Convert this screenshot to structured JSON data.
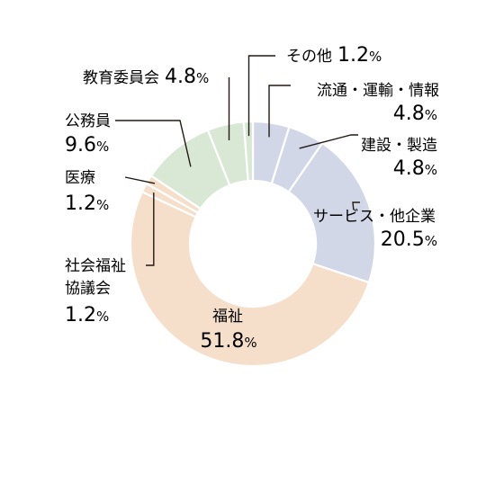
{
  "chart_data": {
    "type": "pie",
    "variant": "donut",
    "categories": [
      "流通・運輸・情報",
      "建設・製造",
      "サービス・他企業",
      "福祉",
      "社会福祉協議会",
      "医療",
      "公務員",
      "教育委員会",
      "その他"
    ],
    "values": [
      4.8,
      4.8,
      20.5,
      51.8,
      1.2,
      1.2,
      9.6,
      4.8,
      1.2
    ],
    "value_labels": [
      "4.8",
      "4.8",
      "20.5",
      "51.8",
      "1.2",
      "1.2",
      "9.6",
      "4.8",
      "1.2"
    ],
    "unit": "%",
    "colors": [
      "#d2d7e7",
      "#d2d7e7",
      "#d2d7e7",
      "#f5dfcb",
      "#f5dfcb",
      "#f5dfcb",
      "#d9e8d5",
      "#d9e8d5",
      "#d9e8d5"
    ],
    "start": "12 o'clock",
    "direction": "clockwise",
    "legend": "none (leader-line labels)"
  }
}
